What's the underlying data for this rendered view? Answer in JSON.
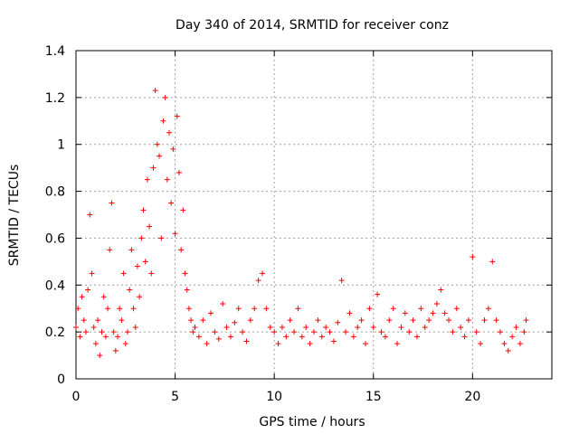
{
  "chart_data": {
    "type": "scatter",
    "title": "Day 340 of 2014, SRMTID for receiver conz",
    "xlabel": "GPS time / hours",
    "ylabel": "SRMTID / TECUs",
    "xlim": [
      0,
      24
    ],
    "ylim": [
      0,
      1.4
    ],
    "x_ticks": [
      0,
      5,
      10,
      15,
      20
    ],
    "x_tick_labels": [
      "0",
      "5",
      "10",
      "15",
      "20"
    ],
    "y_ticks": [
      0,
      0.2,
      0.4,
      0.6,
      0.8,
      1.0,
      1.2,
      1.4
    ],
    "y_tick_labels": [
      "0",
      "0.2",
      "0.4",
      "0.6",
      "0.8",
      "1",
      "1.2",
      "1.4"
    ],
    "grid": true,
    "marker": "+",
    "color": "#ff0000",
    "series": [
      {
        "name": "SRMTID",
        "x": [
          0.0,
          0.1,
          0.2,
          0.3,
          0.4,
          0.5,
          0.6,
          0.7,
          0.8,
          0.9,
          1.0,
          1.1,
          1.2,
          1.3,
          1.4,
          1.5,
          1.6,
          1.7,
          1.8,
          1.9,
          2.0,
          2.1,
          2.2,
          2.3,
          2.4,
          2.5,
          2.6,
          2.7,
          2.8,
          2.9,
          3.0,
          3.1,
          3.2,
          3.3,
          3.4,
          3.5,
          3.6,
          3.7,
          3.8,
          3.9,
          4.0,
          4.1,
          4.2,
          4.3,
          4.4,
          4.5,
          4.6,
          4.7,
          4.8,
          4.9,
          5.0,
          5.1,
          5.2,
          5.3,
          5.4,
          5.5,
          5.6,
          5.7,
          5.8,
          5.9,
          6.0,
          6.2,
          6.4,
          6.6,
          6.8,
          7.0,
          7.2,
          7.4,
          7.6,
          7.8,
          8.0,
          8.2,
          8.4,
          8.6,
          8.8,
          9.0,
          9.2,
          9.4,
          9.6,
          9.8,
          10.0,
          10.2,
          10.4,
          10.6,
          10.8,
          11.0,
          11.2,
          11.4,
          11.6,
          11.8,
          12.0,
          12.2,
          12.4,
          12.6,
          12.8,
          13.0,
          13.2,
          13.4,
          13.6,
          13.8,
          14.0,
          14.2,
          14.4,
          14.6,
          14.8,
          15.0,
          15.2,
          15.4,
          15.6,
          15.8,
          16.0,
          16.2,
          16.4,
          16.6,
          16.8,
          17.0,
          17.2,
          17.4,
          17.6,
          17.8,
          18.0,
          18.2,
          18.4,
          18.6,
          18.8,
          19.0,
          19.2,
          19.4,
          19.6,
          19.8,
          20.0,
          20.2,
          20.4,
          20.6,
          20.8,
          21.0,
          21.2,
          21.4,
          21.6,
          21.8,
          22.0,
          22.2,
          22.4,
          22.6,
          22.7
        ],
        "y": [
          0.22,
          0.3,
          0.18,
          0.35,
          0.25,
          0.2,
          0.38,
          0.7,
          0.45,
          0.22,
          0.15,
          0.25,
          0.1,
          0.2,
          0.35,
          0.18,
          0.3,
          0.55,
          0.75,
          0.2,
          0.12,
          0.18,
          0.3,
          0.25,
          0.45,
          0.15,
          0.2,
          0.38,
          0.55,
          0.3,
          0.22,
          0.48,
          0.35,
          0.6,
          0.72,
          0.5,
          0.85,
          0.65,
          0.45,
          0.9,
          1.23,
          1.0,
          0.95,
          0.6,
          1.1,
          1.2,
          0.85,
          1.05,
          0.75,
          0.98,
          0.62,
          1.12,
          0.88,
          0.55,
          0.72,
          0.45,
          0.38,
          0.3,
          0.25,
          0.2,
          0.22,
          0.18,
          0.25,
          0.15,
          0.28,
          0.2,
          0.17,
          0.32,
          0.22,
          0.18,
          0.24,
          0.3,
          0.2,
          0.16,
          0.25,
          0.3,
          0.42,
          0.45,
          0.3,
          0.22,
          0.2,
          0.15,
          0.22,
          0.18,
          0.25,
          0.2,
          0.3,
          0.18,
          0.22,
          0.15,
          0.2,
          0.25,
          0.18,
          0.22,
          0.2,
          0.16,
          0.24,
          0.42,
          0.2,
          0.28,
          0.18,
          0.22,
          0.25,
          0.15,
          0.3,
          0.22,
          0.36,
          0.2,
          0.18,
          0.25,
          0.3,
          0.15,
          0.22,
          0.28,
          0.2,
          0.25,
          0.18,
          0.3,
          0.22,
          0.25,
          0.28,
          0.32,
          0.38,
          0.28,
          0.25,
          0.2,
          0.3,
          0.22,
          0.18,
          0.25,
          0.52,
          0.2,
          0.15,
          0.25,
          0.3,
          0.5,
          0.25,
          0.2,
          0.15,
          0.12,
          0.18,
          0.22,
          0.15,
          0.2,
          0.25
        ]
      }
    ]
  }
}
